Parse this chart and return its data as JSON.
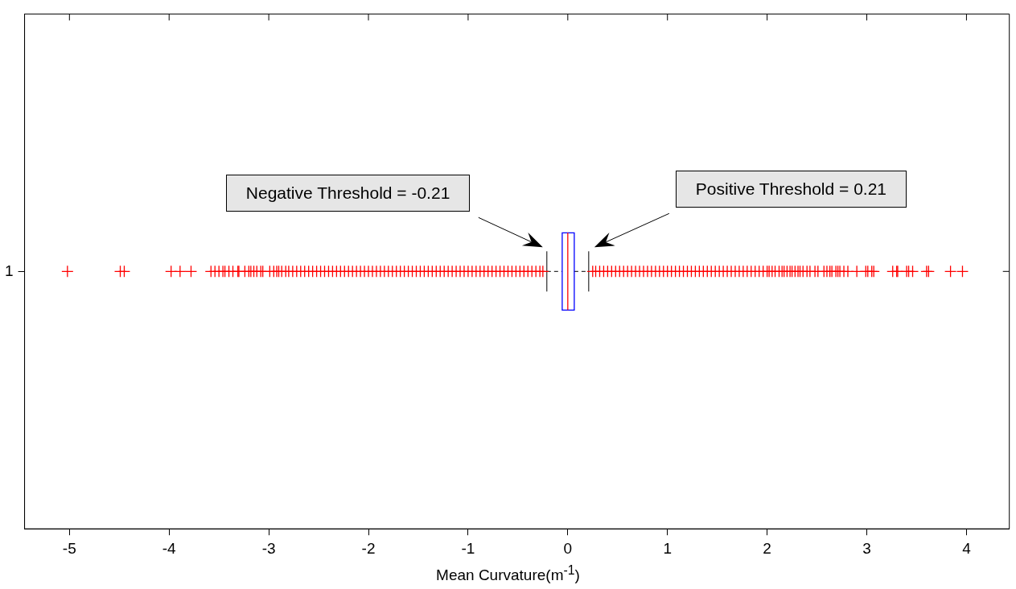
{
  "chart_data": {
    "type": "box",
    "orientation": "horizontal",
    "xlabel": "Mean Curvature(m$^{-1}$)",
    "categories": [
      "1"
    ],
    "xlim": [
      -5.45,
      4.43
    ],
    "xticks": [
      -5,
      -4,
      -3,
      -2,
      -1,
      0,
      1,
      2,
      3,
      4
    ],
    "grid": false,
    "legend": false,
    "marker": "cross",
    "annotations": [
      "Negative Threshold = -0.21",
      "Positive Threshold = 0.21"
    ],
    "series": [
      {
        "color": "#0000ff",
        "boxes": [
          {
            "low": -0.21,
            "q1": -0.056,
            "median": 0.0,
            "q3": 0.065,
            "high": 0.21,
            "outliers": [
              -5.02,
              -4.49,
              -4.45,
              -3.98,
              -3.89,
              -3.78,
              -3.58,
              -3.54,
              -3.5,
              -3.46,
              -3.44,
              -3.4,
              -3.36,
              -3.31,
              -3.3,
              -3.24,
              -3.2,
              -3.18,
              -3.15,
              -3.12,
              -3.08,
              -3.06,
              -2.99,
              -2.95,
              -2.92,
              -2.9,
              -2.87,
              -2.83,
              -2.8,
              -2.76,
              -2.72,
              -2.68,
              -2.64,
              -2.6,
              -2.56,
              -2.52,
              -2.48,
              -2.44,
              -2.4,
              -2.36,
              -2.32,
              -2.28,
              -2.24,
              -2.2,
              -2.16,
              -2.12,
              -2.08,
              -2.04,
              -2.0,
              -1.96,
              -1.92,
              -1.88,
              -1.84,
              -1.8,
              -1.76,
              -1.72,
              -1.68,
              -1.64,
              -1.6,
              -1.56,
              -1.52,
              -1.48,
              -1.44,
              -1.4,
              -1.36,
              -1.32,
              -1.28,
              -1.24,
              -1.2,
              -1.16,
              -1.12,
              -1.08,
              -1.04,
              -1.0,
              -0.96,
              -0.92,
              -0.88,
              -0.84,
              -0.8,
              -0.76,
              -0.72,
              -0.68,
              -0.64,
              -0.6,
              -0.56,
              -0.52,
              -0.48,
              -0.44,
              -0.4,
              -0.36,
              -0.32,
              -0.28,
              -0.25,
              0.25,
              0.28,
              0.32,
              0.36,
              0.4,
              0.44,
              0.48,
              0.52,
              0.56,
              0.6,
              0.64,
              0.68,
              0.72,
              0.76,
              0.8,
              0.84,
              0.88,
              0.92,
              0.96,
              1.0,
              1.04,
              1.08,
              1.12,
              1.16,
              1.2,
              1.24,
              1.28,
              1.32,
              1.36,
              1.4,
              1.44,
              1.48,
              1.52,
              1.56,
              1.6,
              1.64,
              1.68,
              1.72,
              1.76,
              1.8,
              1.84,
              1.88,
              1.92,
              1.96,
              2.0,
              2.02,
              2.05,
              2.08,
              2.12,
              2.15,
              2.17,
              2.2,
              2.23,
              2.25,
              2.28,
              2.31,
              2.33,
              2.36,
              2.4,
              2.43,
              2.48,
              2.51,
              2.57,
              2.6,
              2.63,
              2.65,
              2.69,
              2.71,
              2.73,
              2.77,
              2.81,
              2.9,
              2.99,
              3.01,
              3.05,
              3.07,
              3.26,
              3.3,
              3.31,
              3.4,
              3.42,
              3.46,
              3.6,
              3.62,
              3.84,
              3.96
            ]
          }
        ]
      }
    ]
  }
}
